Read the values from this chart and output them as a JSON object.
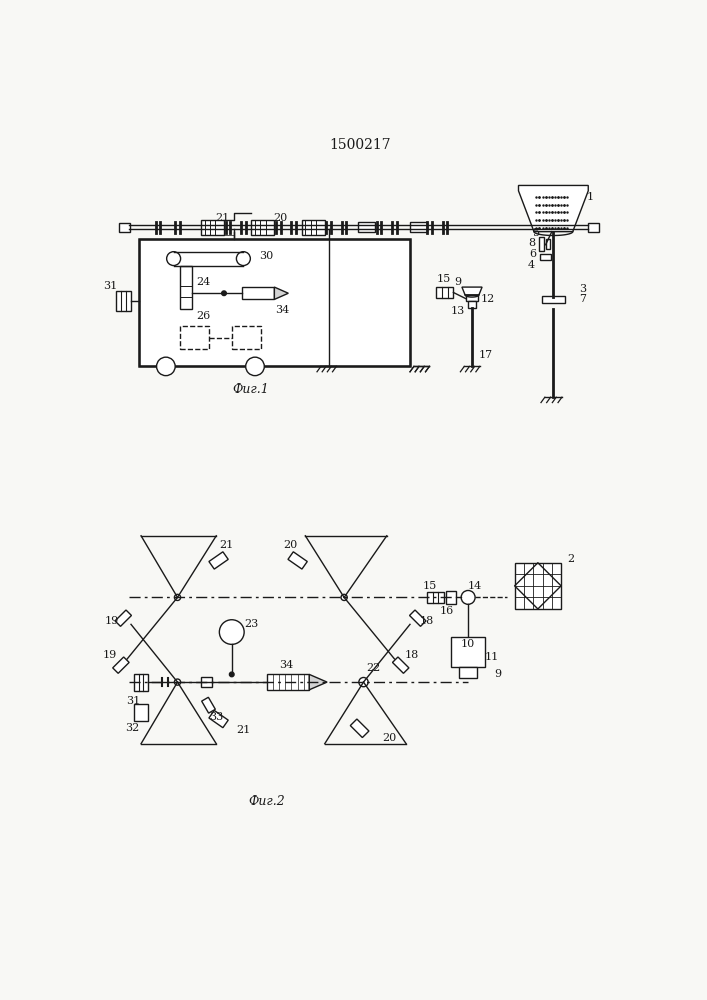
{
  "title": "1500217",
  "fig1_label": "Фиг.1",
  "fig2_label": "Фиг.2",
  "line_color": "#1a1a1a",
  "bg_color": "#f8f8f5",
  "lw": 1.0
}
